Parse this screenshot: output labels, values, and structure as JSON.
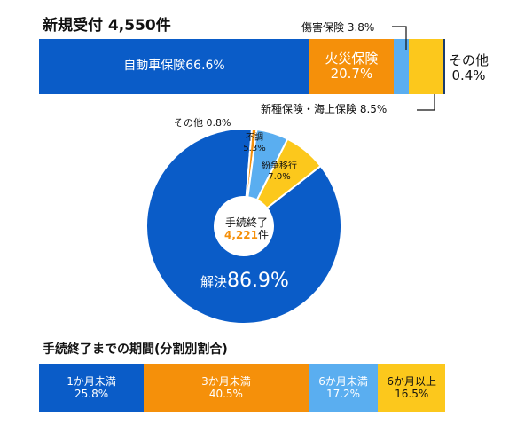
{
  "chart_data": [
    {
      "type": "bar",
      "orientation": "horizontal-stacked",
      "title": "新規受付 4,550件",
      "categories": [
        "自動車保険",
        "火災保険",
        "傷害保険",
        "新種保険・海上保険",
        "その他"
      ],
      "values": [
        66.6,
        20.7,
        3.8,
        8.5,
        0.4
      ],
      "labels": [
        "自動車保険66.6%",
        "火災保険",
        "傷害保険 3.8%",
        "新種保険・海上保険 8.5%",
        "その他"
      ],
      "value_labels": [
        "",
        "20.7%",
        "",
        "",
        "0.4%"
      ],
      "colors": [
        "#0a5cc8",
        "#f5900a",
        "#5aaef0",
        "#fcc81c",
        "#1a3c6e"
      ]
    },
    {
      "type": "pie",
      "style": "donut",
      "center_label": "手続終了",
      "center_number": "4,221",
      "center_unit": "件",
      "categories": [
        "解決",
        "その他",
        "不調",
        "紛争移行"
      ],
      "values": [
        86.9,
        0.8,
        5.3,
        7.0
      ],
      "labels": [
        "解決",
        "その他 0.8%",
        "不調",
        "紛争移行"
      ],
      "value_labels": [
        "86.9%",
        "",
        "5.3%",
        "7.0%"
      ],
      "colors": [
        "#0a5cc8",
        "#f5900a",
        "#5aaef0",
        "#fcc81c"
      ]
    },
    {
      "type": "bar",
      "orientation": "horizontal-stacked",
      "title": "手続終了までの期間(分割別割合)",
      "categories": [
        "1か月未満",
        "3か月未満",
        "6か月未満",
        "6か月以上"
      ],
      "values": [
        25.8,
        40.5,
        17.2,
        16.5
      ],
      "value_labels": [
        "25.8%",
        "40.5%",
        "17.2%",
        "16.5%"
      ],
      "colors": [
        "#0a5cc8",
        "#f5900a",
        "#5aaef0",
        "#fcc81c"
      ]
    }
  ]
}
